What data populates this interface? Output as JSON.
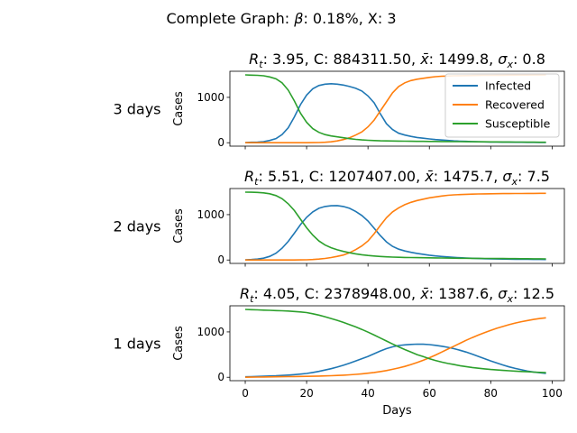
{
  "suptitle": {
    "prefix": "Complete Graph: ",
    "beta_symbol": "β",
    "suffix": ": 0.18%, X: 3"
  },
  "chart_data": [
    {
      "type": "line",
      "row_label": "3 days",
      "title_parts": [
        "R",
        "t",
        ": 3.95, C: 884311.50, ",
        "x̄",
        ": 1499.8, ",
        "σ",
        "x",
        ": 0.8"
      ],
      "ylabel": "Cases",
      "xlabel": "",
      "xlim": [
        -5,
        104
      ],
      "ylim": [
        -75,
        1575
      ],
      "yticks": [
        0,
        1000
      ],
      "xticks": [
        0,
        20,
        40,
        60,
        80,
        100
      ],
      "show_xticklabels": false,
      "legend": {
        "placement": "upper-right",
        "entries": [
          "Infected",
          "Recovered",
          "Susceptible"
        ]
      },
      "grid": false,
      "series": [
        {
          "name": "Infected",
          "color": "#1f77b4",
          "x": [
            0,
            2,
            4,
            6,
            8,
            10,
            12,
            14,
            16,
            18,
            20,
            22,
            24,
            26,
            28,
            30,
            32,
            34,
            36,
            38,
            40,
            42,
            44,
            46,
            48,
            50,
            52,
            54,
            56,
            58,
            60,
            62,
            64,
            66,
            68,
            70,
            72,
            74,
            76,
            78,
            80,
            82,
            84,
            86,
            88,
            90,
            92,
            94,
            96,
            98
          ],
          "y": [
            5,
            10,
            15,
            25,
            50,
            90,
            180,
            330,
            570,
            840,
            1050,
            1190,
            1260,
            1290,
            1300,
            1290,
            1270,
            1240,
            1200,
            1140,
            1030,
            880,
            640,
            420,
            290,
            210,
            170,
            140,
            115,
            100,
            85,
            70,
            60,
            50,
            40,
            35,
            30,
            25,
            20,
            18,
            15,
            14,
            13,
            12,
            11,
            10,
            9,
            8,
            7,
            6
          ]
        },
        {
          "name": "Recovered",
          "color": "#ff7f0e",
          "x": [
            0,
            2,
            4,
            6,
            8,
            10,
            12,
            14,
            16,
            18,
            20,
            22,
            24,
            26,
            28,
            30,
            32,
            34,
            36,
            38,
            40,
            42,
            44,
            46,
            48,
            50,
            52,
            54,
            56,
            58,
            60,
            62,
            64,
            66,
            68,
            70,
            72,
            74,
            76,
            78,
            80,
            82,
            84,
            86,
            88,
            90,
            92,
            94,
            96,
            98
          ],
          "y": [
            0,
            0,
            0,
            0,
            0,
            0,
            0,
            0,
            0,
            0,
            0,
            2,
            5,
            10,
            20,
            40,
            70,
            110,
            170,
            240,
            350,
            500,
            700,
            900,
            1100,
            1240,
            1320,
            1370,
            1400,
            1420,
            1440,
            1455,
            1465,
            1470,
            1475,
            1478,
            1480,
            1482,
            1484,
            1485,
            1486,
            1487,
            1488,
            1489,
            1490,
            1491,
            1492,
            1493,
            1494,
            1495
          ]
        },
        {
          "name": "Susceptible",
          "color": "#2ca02c",
          "x": [
            0,
            2,
            4,
            6,
            8,
            10,
            12,
            14,
            16,
            18,
            20,
            22,
            24,
            26,
            28,
            30,
            32,
            34,
            36,
            38,
            40,
            42,
            44,
            46,
            48,
            50,
            52,
            54,
            56,
            58,
            60,
            62,
            64,
            66,
            68,
            70,
            72,
            74,
            76,
            78,
            80,
            82,
            84,
            86,
            88,
            90,
            92,
            94,
            96,
            98
          ],
          "y": [
            1495,
            1490,
            1485,
            1475,
            1450,
            1410,
            1320,
            1160,
            920,
            650,
            450,
            310,
            230,
            180,
            150,
            130,
            110,
            90,
            75,
            62,
            55,
            48,
            43,
            40,
            38,
            36,
            34,
            32,
            31,
            30,
            29,
            28,
            27,
            26,
            25,
            24,
            23,
            22,
            21,
            20,
            19,
            18,
            17,
            16,
            15,
            14,
            13,
            12,
            11,
            10
          ]
        }
      ]
    },
    {
      "type": "line",
      "row_label": "2 days",
      "title_parts": [
        "R",
        "t",
        ": 5.51, C: 1207407.00, ",
        "x̄",
        ": 1475.7, ",
        "σ",
        "x",
        ": 7.5"
      ],
      "ylabel": "Cases",
      "xlabel": "",
      "xlim": [
        -5,
        104
      ],
      "ylim": [
        -75,
        1575
      ],
      "yticks": [
        0,
        1000
      ],
      "xticks": [
        0,
        20,
        40,
        60,
        80,
        100
      ],
      "show_xticklabels": false,
      "grid": false,
      "series": [
        {
          "name": "Infected",
          "color": "#1f77b4",
          "x": [
            0,
            2,
            4,
            6,
            8,
            10,
            12,
            14,
            16,
            18,
            20,
            22,
            24,
            26,
            28,
            30,
            32,
            34,
            36,
            38,
            40,
            42,
            44,
            46,
            48,
            50,
            52,
            54,
            56,
            58,
            60,
            62,
            64,
            66,
            68,
            70,
            72,
            74,
            76,
            78,
            80,
            82,
            84,
            86,
            88,
            90,
            92,
            94,
            96,
            98
          ],
          "y": [
            5,
            10,
            20,
            40,
            80,
            150,
            260,
            410,
            590,
            780,
            940,
            1060,
            1140,
            1180,
            1195,
            1200,
            1180,
            1140,
            1070,
            980,
            860,
            700,
            540,
            400,
            300,
            240,
            200,
            170,
            145,
            125,
            105,
            90,
            78,
            68,
            58,
            50,
            44,
            38,
            33,
            29,
            26,
            23,
            21,
            19,
            17,
            15,
            14,
            13,
            12,
            11
          ]
        },
        {
          "name": "Recovered",
          "color": "#ff7f0e",
          "x": [
            0,
            2,
            4,
            6,
            8,
            10,
            12,
            14,
            16,
            18,
            20,
            22,
            24,
            26,
            28,
            30,
            32,
            34,
            36,
            38,
            40,
            42,
            44,
            46,
            48,
            50,
            52,
            54,
            56,
            58,
            60,
            62,
            64,
            66,
            68,
            70,
            72,
            74,
            76,
            78,
            80,
            82,
            84,
            86,
            88,
            90,
            92,
            94,
            96,
            98
          ],
          "y": [
            0,
            0,
            0,
            0,
            0,
            0,
            0,
            0,
            0,
            2,
            5,
            10,
            20,
            35,
            55,
            80,
            110,
            160,
            230,
            310,
            420,
            580,
            760,
            930,
            1060,
            1150,
            1220,
            1270,
            1310,
            1340,
            1370,
            1390,
            1410,
            1425,
            1435,
            1442,
            1448,
            1452,
            1455,
            1458,
            1460,
            1462,
            1463,
            1464,
            1465,
            1466,
            1467,
            1468,
            1469,
            1470
          ]
        },
        {
          "name": "Susceptible",
          "color": "#2ca02c",
          "x": [
            0,
            2,
            4,
            6,
            8,
            10,
            12,
            14,
            16,
            18,
            20,
            22,
            24,
            26,
            28,
            30,
            32,
            34,
            36,
            38,
            40,
            42,
            44,
            46,
            48,
            50,
            52,
            54,
            56,
            58,
            60,
            62,
            64,
            66,
            68,
            70,
            72,
            74,
            76,
            78,
            80,
            82,
            84,
            86,
            88,
            90,
            92,
            94,
            96,
            98
          ],
          "y": [
            1495,
            1493,
            1490,
            1480,
            1460,
            1420,
            1350,
            1240,
            1090,
            900,
            710,
            550,
            420,
            330,
            270,
            225,
            190,
            160,
            135,
            115,
            100,
            88,
            78,
            70,
            65,
            60,
            57,
            54,
            52,
            50,
            48,
            46,
            44,
            42,
            40,
            39,
            38,
            37,
            36,
            35,
            34,
            33,
            32,
            31,
            30,
            29,
            28,
            27,
            26,
            25
          ]
        }
      ]
    },
    {
      "type": "line",
      "row_label": "1 days",
      "title_parts": [
        "R",
        "t",
        ": 4.05, C: 2378948.00, ",
        "x̄",
        ": 1387.6, ",
        "σ",
        "x",
        ": 12.5"
      ],
      "ylabel": "Cases",
      "xlabel": "Days",
      "xlim": [
        -5,
        104
      ],
      "ylim": [
        -75,
        1575
      ],
      "yticks": [
        0,
        1000
      ],
      "xticks": [
        0,
        20,
        40,
        60,
        80,
        100
      ],
      "show_xticklabels": true,
      "grid": false,
      "series": [
        {
          "name": "Infected",
          "color": "#1f77b4",
          "x": [
            0,
            2,
            4,
            6,
            8,
            10,
            12,
            14,
            16,
            18,
            20,
            22,
            24,
            26,
            28,
            30,
            32,
            34,
            36,
            38,
            40,
            42,
            44,
            46,
            48,
            50,
            52,
            54,
            56,
            58,
            60,
            62,
            64,
            66,
            68,
            70,
            72,
            74,
            76,
            78,
            80,
            82,
            84,
            86,
            88,
            90,
            92,
            94,
            96,
            98
          ],
          "y": [
            10,
            14,
            18,
            23,
            28,
            33,
            40,
            48,
            58,
            70,
            85,
            105,
            130,
            160,
            190,
            225,
            265,
            310,
            360,
            410,
            460,
            520,
            580,
            630,
            670,
            700,
            715,
            725,
            730,
            728,
            720,
            705,
            685,
            660,
            630,
            595,
            555,
            510,
            460,
            410,
            360,
            315,
            270,
            230,
            195,
            165,
            135,
            115,
            100,
            85
          ]
        },
        {
          "name": "Recovered",
          "color": "#ff7f0e",
          "x": [
            0,
            2,
            4,
            6,
            8,
            10,
            12,
            14,
            16,
            18,
            20,
            22,
            24,
            26,
            28,
            30,
            32,
            34,
            36,
            38,
            40,
            42,
            44,
            46,
            48,
            50,
            52,
            54,
            56,
            58,
            60,
            62,
            64,
            66,
            68,
            70,
            72,
            74,
            76,
            78,
            80,
            82,
            84,
            86,
            88,
            90,
            92,
            94,
            96,
            98
          ],
          "y": [
            0,
            2,
            4,
            6,
            8,
            10,
            12,
            14,
            16,
            18,
            20,
            23,
            26,
            30,
            35,
            40,
            46,
            54,
            64,
            76,
            90,
            106,
            125,
            148,
            175,
            205,
            240,
            280,
            325,
            375,
            430,
            490,
            555,
            620,
            685,
            750,
            815,
            875,
            930,
            985,
            1035,
            1080,
            1120,
            1160,
            1195,
            1225,
            1250,
            1275,
            1295,
            1310
          ]
        },
        {
          "name": "Susceptible",
          "color": "#2ca02c",
          "x": [
            0,
            2,
            4,
            6,
            8,
            10,
            12,
            14,
            16,
            18,
            20,
            22,
            24,
            26,
            28,
            30,
            32,
            34,
            36,
            38,
            40,
            42,
            44,
            46,
            48,
            50,
            52,
            54,
            56,
            58,
            60,
            62,
            64,
            66,
            68,
            70,
            72,
            74,
            76,
            78,
            80,
            82,
            84,
            86,
            88,
            90,
            92,
            94,
            96,
            98
          ],
          "y": [
            1495,
            1490,
            1485,
            1480,
            1475,
            1470,
            1465,
            1460,
            1450,
            1440,
            1425,
            1400,
            1370,
            1335,
            1295,
            1255,
            1210,
            1160,
            1110,
            1055,
            995,
            930,
            865,
            800,
            735,
            670,
            610,
            555,
            500,
            455,
            410,
            370,
            335,
            305,
            280,
            255,
            235,
            215,
            200,
            185,
            172,
            162,
            152,
            144,
            136,
            128,
            121,
            114,
            108,
            102
          ]
        }
      ]
    }
  ]
}
